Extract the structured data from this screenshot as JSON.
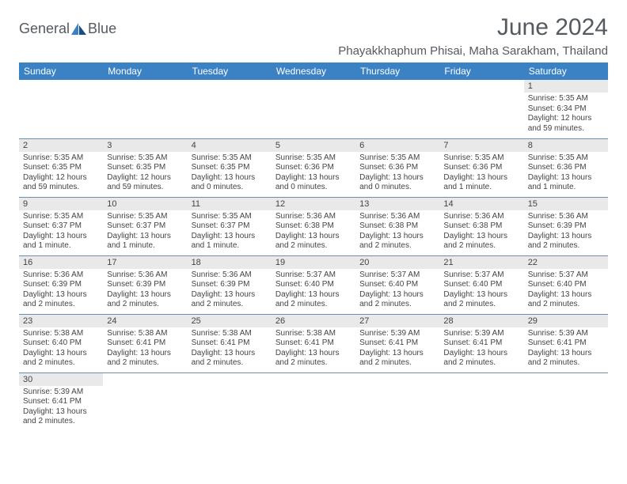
{
  "logo": {
    "text1": "General",
    "text2": "Blue",
    "sail_color": "#2f6fb0"
  },
  "header": {
    "title": "June 2024",
    "location": "Phayakkhaphum Phisai, Maha Sarakham, Thailand"
  },
  "calendar": {
    "weekday_header_bg": "#3b82c4",
    "weekdays": [
      "Sunday",
      "Monday",
      "Tuesday",
      "Wednesday",
      "Thursday",
      "Friday",
      "Saturday"
    ],
    "weeks": [
      [
        null,
        null,
        null,
        null,
        null,
        null,
        {
          "n": "1",
          "sr": "5:35 AM",
          "ss": "6:34 PM",
          "dl": "12 hours and 59 minutes."
        }
      ],
      [
        {
          "n": "2",
          "sr": "5:35 AM",
          "ss": "6:35 PM",
          "dl": "12 hours and 59 minutes."
        },
        {
          "n": "3",
          "sr": "5:35 AM",
          "ss": "6:35 PM",
          "dl": "12 hours and 59 minutes."
        },
        {
          "n": "4",
          "sr": "5:35 AM",
          "ss": "6:35 PM",
          "dl": "13 hours and 0 minutes."
        },
        {
          "n": "5",
          "sr": "5:35 AM",
          "ss": "6:36 PM",
          "dl": "13 hours and 0 minutes."
        },
        {
          "n": "6",
          "sr": "5:35 AM",
          "ss": "6:36 PM",
          "dl": "13 hours and 0 minutes."
        },
        {
          "n": "7",
          "sr": "5:35 AM",
          "ss": "6:36 PM",
          "dl": "13 hours and 1 minute."
        },
        {
          "n": "8",
          "sr": "5:35 AM",
          "ss": "6:36 PM",
          "dl": "13 hours and 1 minute."
        }
      ],
      [
        {
          "n": "9",
          "sr": "5:35 AM",
          "ss": "6:37 PM",
          "dl": "13 hours and 1 minute."
        },
        {
          "n": "10",
          "sr": "5:35 AM",
          "ss": "6:37 PM",
          "dl": "13 hours and 1 minute."
        },
        {
          "n": "11",
          "sr": "5:35 AM",
          "ss": "6:37 PM",
          "dl": "13 hours and 1 minute."
        },
        {
          "n": "12",
          "sr": "5:36 AM",
          "ss": "6:38 PM",
          "dl": "13 hours and 2 minutes."
        },
        {
          "n": "13",
          "sr": "5:36 AM",
          "ss": "6:38 PM",
          "dl": "13 hours and 2 minutes."
        },
        {
          "n": "14",
          "sr": "5:36 AM",
          "ss": "6:38 PM",
          "dl": "13 hours and 2 minutes."
        },
        {
          "n": "15",
          "sr": "5:36 AM",
          "ss": "6:39 PM",
          "dl": "13 hours and 2 minutes."
        }
      ],
      [
        {
          "n": "16",
          "sr": "5:36 AM",
          "ss": "6:39 PM",
          "dl": "13 hours and 2 minutes."
        },
        {
          "n": "17",
          "sr": "5:36 AM",
          "ss": "6:39 PM",
          "dl": "13 hours and 2 minutes."
        },
        {
          "n": "18",
          "sr": "5:36 AM",
          "ss": "6:39 PM",
          "dl": "13 hours and 2 minutes."
        },
        {
          "n": "19",
          "sr": "5:37 AM",
          "ss": "6:40 PM",
          "dl": "13 hours and 2 minutes."
        },
        {
          "n": "20",
          "sr": "5:37 AM",
          "ss": "6:40 PM",
          "dl": "13 hours and 2 minutes."
        },
        {
          "n": "21",
          "sr": "5:37 AM",
          "ss": "6:40 PM",
          "dl": "13 hours and 2 minutes."
        },
        {
          "n": "22",
          "sr": "5:37 AM",
          "ss": "6:40 PM",
          "dl": "13 hours and 2 minutes."
        }
      ],
      [
        {
          "n": "23",
          "sr": "5:38 AM",
          "ss": "6:40 PM",
          "dl": "13 hours and 2 minutes."
        },
        {
          "n": "24",
          "sr": "5:38 AM",
          "ss": "6:41 PM",
          "dl": "13 hours and 2 minutes."
        },
        {
          "n": "25",
          "sr": "5:38 AM",
          "ss": "6:41 PM",
          "dl": "13 hours and 2 minutes."
        },
        {
          "n": "26",
          "sr": "5:38 AM",
          "ss": "6:41 PM",
          "dl": "13 hours and 2 minutes."
        },
        {
          "n": "27",
          "sr": "5:39 AM",
          "ss": "6:41 PM",
          "dl": "13 hours and 2 minutes."
        },
        {
          "n": "28",
          "sr": "5:39 AM",
          "ss": "6:41 PM",
          "dl": "13 hours and 2 minutes."
        },
        {
          "n": "29",
          "sr": "5:39 AM",
          "ss": "6:41 PM",
          "dl": "13 hours and 2 minutes."
        }
      ],
      [
        {
          "n": "30",
          "sr": "5:39 AM",
          "ss": "6:41 PM",
          "dl": "13 hours and 2 minutes."
        },
        null,
        null,
        null,
        null,
        null,
        null
      ]
    ],
    "labels": {
      "sunrise": "Sunrise: ",
      "sunset": "Sunset: ",
      "daylight": "Daylight: "
    }
  }
}
